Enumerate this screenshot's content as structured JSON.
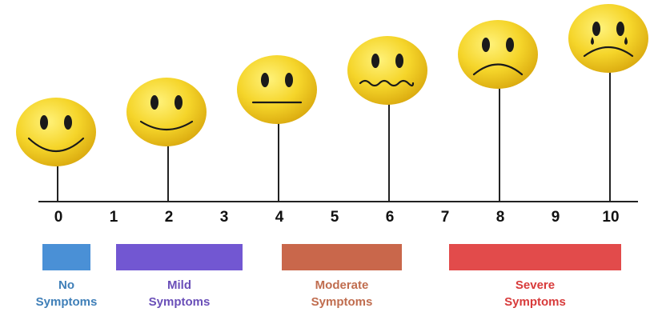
{
  "scale": {
    "ticks": [
      0,
      1,
      2,
      3,
      4,
      5,
      6,
      7,
      8,
      9,
      10
    ]
  },
  "legend": [
    {
      "lines": [
        "No",
        "Symptoms"
      ],
      "color": "#4a90d6",
      "text_color": "#3f7fb8"
    },
    {
      "lines": [
        "Mild",
        "Symptoms"
      ],
      "color": "#7257d2",
      "text_color": "#6a4fb8"
    },
    {
      "lines": [
        "Moderate",
        "Symptoms"
      ],
      "color": "#c9674b",
      "text_color": "#c06d4f"
    },
    {
      "lines": [
        "Severe",
        "Symptoms"
      ],
      "color": "#e24b4b",
      "text_color": "#d83b3b"
    }
  ]
}
